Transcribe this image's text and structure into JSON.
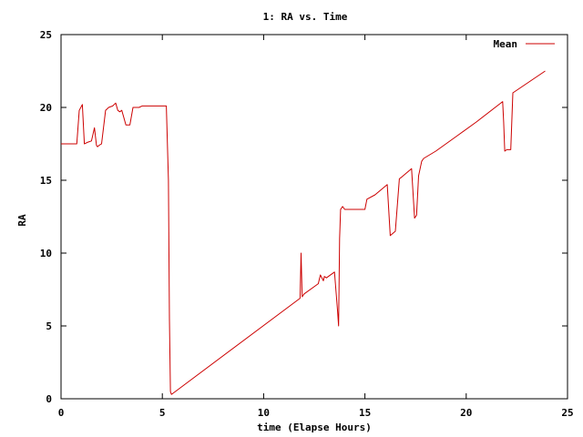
{
  "chart_data": {
    "type": "line",
    "title": "1: RA vs. Time",
    "xlabel": "time (Elapse Hours)",
    "ylabel": "RA",
    "xlim": [
      0,
      25
    ],
    "ylim": [
      0,
      25
    ],
    "xticks": [
      0,
      5,
      10,
      15,
      20,
      25
    ],
    "yticks": [
      0,
      5,
      10,
      15,
      20,
      25
    ],
    "grid": false,
    "legend_position": "top-right",
    "series": [
      {
        "name": "Mean",
        "color": "#cc0000",
        "x": [
          0.0,
          0.78,
          0.9,
          1.05,
          1.15,
          1.3,
          1.5,
          1.65,
          1.75,
          1.8,
          1.88,
          2.0,
          2.2,
          2.35,
          2.55,
          2.7,
          2.8,
          2.9,
          3.0,
          3.2,
          3.4,
          3.55,
          3.7,
          3.85,
          4.0,
          4.2,
          4.6,
          5.2,
          5.3,
          5.35,
          5.4,
          5.45,
          5.55,
          11.8,
          11.85,
          11.9,
          12.0,
          12.7,
          12.8,
          12.95,
          13.0,
          13.1,
          13.5,
          13.65,
          13.7,
          13.75,
          13.8,
          13.9,
          14.0,
          14.1,
          14.2,
          14.4,
          15.0,
          15.1,
          15.5,
          16.1,
          16.25,
          16.5,
          16.7,
          16.8,
          17.3,
          17.45,
          17.55,
          17.65,
          17.8,
          17.9,
          18.5,
          19.5,
          20.5,
          21.8,
          21.85,
          21.9,
          22.0,
          22.2,
          22.3,
          23.9
        ],
        "y": [
          17.5,
          17.5,
          19.8,
          20.2,
          17.5,
          17.6,
          17.7,
          18.6,
          17.4,
          17.3,
          17.4,
          17.5,
          19.8,
          20.0,
          20.1,
          20.3,
          19.8,
          19.7,
          19.8,
          18.8,
          18.8,
          20.0,
          20.0,
          20.0,
          20.1,
          20.1,
          20.1,
          20.1,
          15.0,
          5.5,
          0.5,
          0.3,
          0.4,
          6.9,
          10.0,
          7.0,
          7.2,
          7.9,
          8.5,
          8.1,
          8.4,
          8.3,
          8.7,
          6.0,
          5.0,
          11.0,
          13.0,
          13.2,
          13.0,
          13.0,
          13.0,
          13.0,
          13.0,
          13.7,
          14.0,
          14.7,
          11.2,
          11.5,
          15.1,
          15.2,
          15.8,
          12.4,
          12.6,
          15.3,
          16.3,
          16.5,
          17.0,
          18.0,
          19.0,
          20.4,
          19.0,
          17.0,
          17.1,
          17.1,
          21.0,
          22.5
        ]
      }
    ]
  }
}
